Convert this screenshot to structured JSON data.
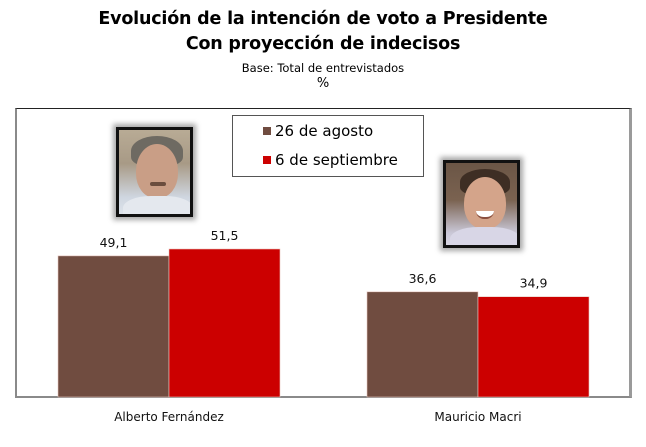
{
  "chart_data": {
    "type": "bar",
    "title": "Evolución de la intención de voto a Presidente",
    "subtitle": "Con proyección de indecisos",
    "note": "Base: Total de entrevistados",
    "unit": "%",
    "xlabel": "",
    "ylabel": "",
    "ylim": [
      0,
      55
    ],
    "grid": false,
    "legend_position": "top-center",
    "categories": [
      "Alberto Fernández",
      "Mauricio Macri"
    ],
    "series": [
      {
        "name": "26 de agosto",
        "color": "#704c40",
        "values": [
          49.1,
          36.6
        ],
        "labels": [
          "49,1",
          "36,6"
        ]
      },
      {
        "name": "6 de septiembre",
        "color": "#cc0000",
        "values": [
          51.5,
          34.9
        ],
        "labels": [
          "51,5",
          "34,9"
        ]
      }
    ]
  },
  "photos": [
    {
      "subject": "Alberto Fernández",
      "icon": "candidate-photo"
    },
    {
      "subject": "Mauricio Macri",
      "icon": "candidate-photo"
    }
  ]
}
